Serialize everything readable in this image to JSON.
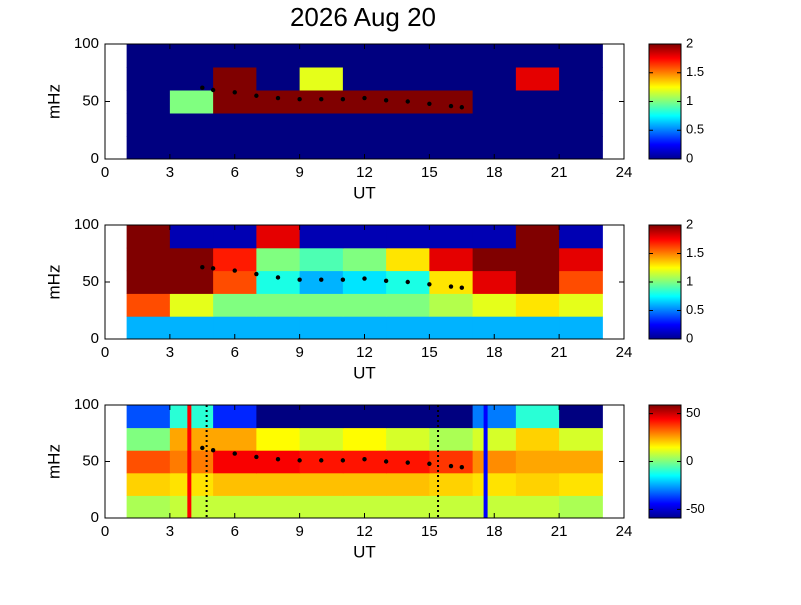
{
  "chart_data": [
    {
      "type": "heatmap",
      "title": "2026 Aug 20",
      "xlabel": "UT",
      "ylabel": "mHz",
      "xlim": [
        0,
        24
      ],
      "xticks": [
        0,
        3,
        6,
        9,
        12,
        15,
        18,
        21,
        24
      ],
      "ylim": [
        0,
        100
      ],
      "yticks": [
        0,
        50,
        100
      ],
      "colormap": "jet",
      "clim": [
        0,
        2
      ],
      "cticks": [
        0,
        0.5,
        1,
        1.5,
        2
      ],
      "x_edges": [
        1,
        3,
        5,
        7,
        9,
        11,
        13,
        15,
        17,
        19,
        21,
        23
      ],
      "y_edges": [
        0,
        20,
        40,
        60,
        80,
        100
      ],
      "z": [
        [
          0,
          0,
          0,
          0,
          0,
          0,
          0,
          0,
          0,
          0,
          0
        ],
        [
          0,
          0,
          0,
          0,
          0,
          0,
          0,
          0,
          0,
          0,
          0
        ],
        [
          0,
          1,
          2,
          2,
          2,
          2,
          2,
          2,
          0,
          0,
          0
        ],
        [
          0,
          0,
          2,
          0,
          1.2,
          0,
          0,
          0,
          0,
          1.8,
          0
        ],
        [
          0,
          0,
          0,
          0,
          0,
          0,
          0,
          0,
          0,
          0,
          0
        ]
      ],
      "ridge": {
        "color": "#000000",
        "x": [
          4.5,
          5,
          6,
          7,
          8,
          9,
          10,
          11,
          12,
          13,
          14,
          15,
          16,
          16.5
        ],
        "values": [
          62,
          60,
          58,
          55,
          53,
          52,
          52,
          52,
          53,
          51,
          50,
          48,
          46,
          45
        ]
      }
    },
    {
      "type": "heatmap",
      "xlabel": "UT",
      "ylabel": "mHz",
      "xlim": [
        0,
        24
      ],
      "xticks": [
        0,
        3,
        6,
        9,
        12,
        15,
        18,
        21,
        24
      ],
      "ylim": [
        0,
        100
      ],
      "yticks": [
        0,
        50,
        100
      ],
      "colormap": "jet",
      "clim": [
        0,
        2
      ],
      "cticks": [
        0,
        0.5,
        1,
        1.5,
        2
      ],
      "x_edges": [
        1,
        3,
        5,
        7,
        9,
        11,
        13,
        15,
        17,
        19,
        21,
        23
      ],
      "y_edges": [
        0,
        20,
        40,
        60,
        80,
        100
      ],
      "z": [
        [
          0.6,
          0.6,
          0.6,
          0.6,
          0.6,
          0.6,
          0.6,
          0.6,
          0.6,
          0.6,
          0.6
        ],
        [
          1.6,
          1.2,
          1,
          1,
          1,
          1,
          1,
          1.1,
          1.2,
          1.3,
          1.2
        ],
        [
          2,
          2,
          1.6,
          0.8,
          0.6,
          0.7,
          0.8,
          1.3,
          1.8,
          2,
          1.6
        ],
        [
          2,
          2,
          1.7,
          1,
          0.9,
          1,
          1.3,
          1.8,
          2,
          2,
          1.8
        ],
        [
          2,
          0.1,
          0.1,
          1.8,
          0.1,
          0.1,
          0.1,
          0.1,
          0.1,
          2,
          0.1
        ]
      ],
      "ridge": {
        "color": "#000000",
        "x": [
          4.5,
          5,
          6,
          7,
          8,
          9,
          10,
          11,
          12,
          13,
          14,
          15,
          16,
          16.5
        ],
        "values": [
          63,
          62,
          60,
          57,
          54,
          52,
          52,
          52,
          53,
          51,
          50,
          48,
          46,
          45
        ]
      }
    },
    {
      "type": "heatmap",
      "xlabel": "UT",
      "ylabel": "mHz",
      "xlim": [
        0,
        24
      ],
      "xticks": [
        0,
        3,
        6,
        9,
        12,
        15,
        18,
        21,
        24
      ],
      "ylim": [
        0,
        100
      ],
      "yticks": [
        0,
        50,
        100
      ],
      "colormap": "jet",
      "clim": [
        -59,
        59
      ],
      "cticks": [
        -50,
        0,
        50
      ],
      "x_edges": [
        1,
        3,
        5,
        7,
        9,
        11,
        13,
        15,
        17,
        19,
        21,
        23
      ],
      "y_edges": [
        0,
        20,
        40,
        60,
        80,
        100
      ],
      "z": [
        [
          5,
          8,
          8,
          8,
          8,
          8,
          8,
          8,
          8,
          8,
          5
        ],
        [
          20,
          18,
          22,
          22,
          22,
          22,
          22,
          20,
          18,
          20,
          18
        ],
        [
          35,
          30,
          45,
          45,
          42,
          42,
          42,
          38,
          28,
          25,
          25
        ],
        [
          0,
          25,
          25,
          15,
          10,
          15,
          10,
          5,
          10,
          20,
          10
        ],
        [
          -35,
          -10,
          -40,
          -59,
          -59,
          -59,
          -59,
          -59,
          -30,
          -10,
          -59
        ]
      ],
      "ridge": {
        "color": "#000000",
        "x": [
          4.5,
          5,
          6,
          7,
          8,
          9,
          10,
          11,
          12,
          13,
          14,
          15,
          16,
          16.5
        ],
        "values": [
          62,
          60,
          57,
          54,
          52,
          51,
          51,
          51,
          52,
          50,
          49,
          48,
          46,
          45
        ]
      },
      "vlines": [
        {
          "x": 3.9,
          "color": "#ff0000",
          "style": "solid"
        },
        {
          "x": 4.7,
          "color": "#000000",
          "style": "dotted"
        },
        {
          "x": 15.4,
          "color": "#000000",
          "style": "dotted"
        },
        {
          "x": 17.6,
          "color": "#0000ff",
          "style": "solid"
        }
      ]
    }
  ]
}
